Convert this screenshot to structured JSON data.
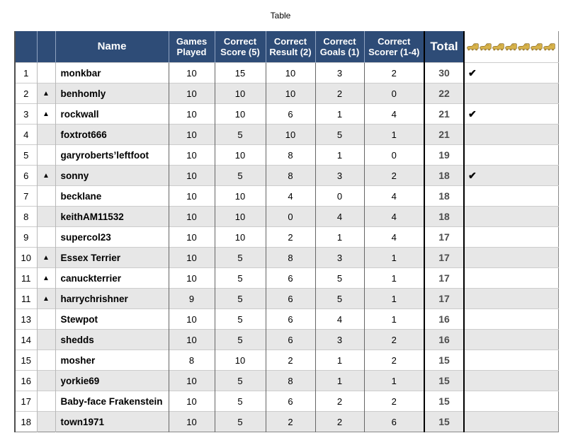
{
  "page_title": "Table",
  "chart_data": {
    "type": "table",
    "title": "Table",
    "columns": [
      "Rank",
      "Movement",
      "Name",
      "Games Played",
      "Correct Score (5)",
      "Correct Result (2)",
      "Correct Goals (1)",
      "Correct Scorer (1-4)",
      "Total",
      "Golden Boots"
    ],
    "rows": [
      {
        "rank": "1",
        "moved": false,
        "name": "monkbar",
        "games": "10",
        "score": "15",
        "result": "10",
        "goals": "3",
        "scorer": "2",
        "total": "30",
        "check": true
      },
      {
        "rank": "2",
        "moved": true,
        "name": "benhomly",
        "games": "10",
        "score": "10",
        "result": "10",
        "goals": "2",
        "scorer": "0",
        "total": "22",
        "check": false
      },
      {
        "rank": "3",
        "moved": true,
        "name": "rockwall",
        "games": "10",
        "score": "10",
        "result": "6",
        "goals": "1",
        "scorer": "4",
        "total": "21",
        "check": true
      },
      {
        "rank": "4",
        "moved": false,
        "name": "foxtrot666",
        "games": "10",
        "score": "5",
        "result": "10",
        "goals": "5",
        "scorer": "1",
        "total": "21",
        "check": false
      },
      {
        "rank": "5",
        "moved": false,
        "name": "garyroberts’leftfoot",
        "games": "10",
        "score": "10",
        "result": "8",
        "goals": "1",
        "scorer": "0",
        "total": "19",
        "check": false
      },
      {
        "rank": "6",
        "moved": true,
        "name": "sonny",
        "games": "10",
        "score": "5",
        "result": "8",
        "goals": "3",
        "scorer": "2",
        "total": "18",
        "check": true
      },
      {
        "rank": "7",
        "moved": false,
        "name": "becklane",
        "games": "10",
        "score": "10",
        "result": "4",
        "goals": "0",
        "scorer": "4",
        "total": "18",
        "check": false
      },
      {
        "rank": "8",
        "moved": false,
        "name": "keithAM11532",
        "games": "10",
        "score": "10",
        "result": "0",
        "goals": "4",
        "scorer": "4",
        "total": "18",
        "check": false
      },
      {
        "rank": "9",
        "moved": false,
        "name": "supercol23",
        "games": "10",
        "score": "10",
        "result": "2",
        "goals": "1",
        "scorer": "4",
        "total": "17",
        "check": false
      },
      {
        "rank": "10",
        "moved": true,
        "name": "Essex Terrier",
        "games": "10",
        "score": "5",
        "result": "8",
        "goals": "3",
        "scorer": "1",
        "total": "17",
        "check": false
      },
      {
        "rank": "11",
        "moved": true,
        "name": "canuckterrier",
        "games": "10",
        "score": "5",
        "result": "6",
        "goals": "5",
        "scorer": "1",
        "total": "17",
        "check": false
      },
      {
        "rank": "11",
        "moved": true,
        "name": "harrychrishner",
        "games": "9",
        "score": "5",
        "result": "6",
        "goals": "5",
        "scorer": "1",
        "total": "17",
        "check": false
      },
      {
        "rank": "13",
        "moved": false,
        "name": "Stewpot",
        "games": "10",
        "score": "5",
        "result": "6",
        "goals": "4",
        "scorer": "1",
        "total": "16",
        "check": false
      },
      {
        "rank": "14",
        "moved": false,
        "name": "shedds",
        "games": "10",
        "score": "5",
        "result": "6",
        "goals": "3",
        "scorer": "2",
        "total": "16",
        "check": false
      },
      {
        "rank": "15",
        "moved": false,
        "name": "mosher",
        "games": "8",
        "score": "10",
        "result": "2",
        "goals": "1",
        "scorer": "2",
        "total": "15",
        "check": false
      },
      {
        "rank": "16",
        "moved": false,
        "name": "yorkie69",
        "games": "10",
        "score": "5",
        "result": "8",
        "goals": "1",
        "scorer": "1",
        "total": "15",
        "check": false
      },
      {
        "rank": "17",
        "moved": false,
        "name": "Baby-face Frakenstein",
        "games": "10",
        "score": "5",
        "result": "6",
        "goals": "2",
        "scorer": "2",
        "total": "15",
        "check": false
      },
      {
        "rank": "18",
        "moved": false,
        "name": "town1971",
        "games": "10",
        "score": "5",
        "result": "2",
        "goals": "2",
        "scorer": "6",
        "total": "15",
        "check": false
      }
    ]
  },
  "header_labels": {
    "rank": "",
    "movement": "",
    "name": "Name",
    "games": "Games Played",
    "score": "Correct Score (5)",
    "result": "Correct Result (2)",
    "goals": "Correct Goals (1)",
    "scorer": "Correct Scorer (1-4)",
    "total": "Total"
  },
  "icons": {
    "up_triangle": "▲",
    "check": "✔",
    "golden_boot": "golden-boot-icon",
    "boots_count": 7
  },
  "colors": {
    "header_bg": "#2e4c77",
    "header_text": "#ffffff",
    "row_alt_bg": "#e7e7e7",
    "total_text": "#4d4d4d",
    "boot_gold": "#d7b24a",
    "thick_border": "#000000"
  }
}
